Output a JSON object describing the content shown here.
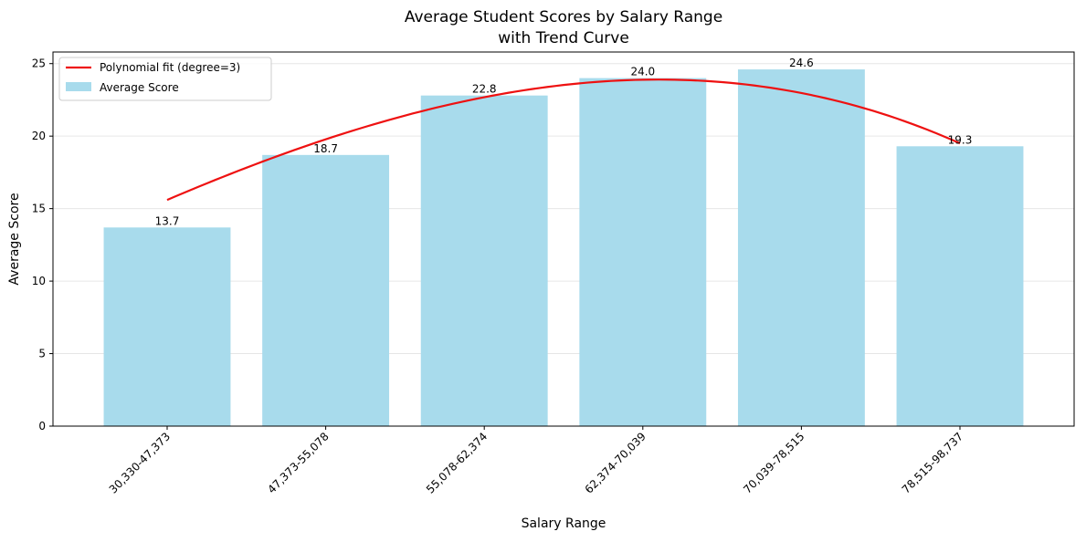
{
  "chart_data": {
    "type": "bar",
    "title": "Average Student Scores by Salary Range",
    "subtitle": "with Trend Curve",
    "xlabel": "Salary Range",
    "ylabel": "Average Score",
    "categories": [
      "30,330-47,373",
      "47,373-55,078",
      "55,078-62,374",
      "62,374-70,039",
      "70,039-78,515",
      "78,515-98,737"
    ],
    "series": [
      {
        "name": "Average Score",
        "type": "bar",
        "values": [
          13.7,
          18.7,
          22.8,
          24.0,
          24.6,
          19.3
        ],
        "data_labels": [
          "13.7",
          "18.7",
          "22.8",
          "24.0",
          "24.6",
          "19.3"
        ],
        "color": "#a8dbec"
      },
      {
        "name": "Polynomial fit (degree=3)",
        "type": "line",
        "endpoints": [
          15.6,
          19.5
        ],
        "peak": {
          "x_index": 3.1,
          "y": 23.9
        },
        "color": "#ee1111"
      }
    ],
    "ylim": [
      0,
      25.8
    ],
    "yticks": [
      0,
      5,
      10,
      15,
      20,
      25
    ],
    "grid": "horizontal",
    "legend_position": "top-left"
  }
}
